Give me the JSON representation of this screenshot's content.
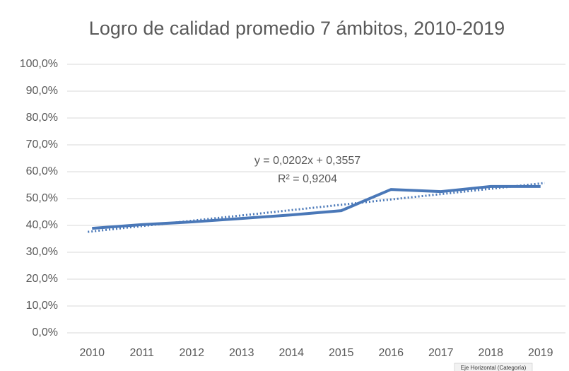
{
  "chart_data": {
    "type": "line",
    "title": "Logro de calidad promedio 7 ámbitos, 2010-2019",
    "categories": [
      "2010",
      "2011",
      "2012",
      "2013",
      "2014",
      "2015",
      "2016",
      "2017",
      "2018",
      "2019"
    ],
    "series": [
      {
        "color": "#4a78b8",
        "values": [
          38.9,
          40.3,
          41.3,
          42.6,
          43.9,
          45.5,
          53.4,
          52.6,
          54.5,
          54.5
        ]
      }
    ],
    "trendline": {
      "color": "#4a78b8",
      "start": 37.6,
      "end": 55.8,
      "equation": "y = 0,0202x + 0,3557",
      "r2": "R² = 0,9204"
    },
    "ylim": [
      0,
      100
    ],
    "yticks": [
      {
        "value": 0,
        "label": "0,0%"
      },
      {
        "value": 10,
        "label": "10,0%"
      },
      {
        "value": 20,
        "label": "20,0%"
      },
      {
        "value": 30,
        "label": "30,0%"
      },
      {
        "value": 40,
        "label": "40,0%"
      },
      {
        "value": 50,
        "label": "50,0%"
      },
      {
        "value": 60,
        "label": "60,0%"
      },
      {
        "value": 70,
        "label": "70,0%"
      },
      {
        "value": 80,
        "label": "80,0%"
      },
      {
        "value": 90,
        "label": "90,0%"
      },
      {
        "value": 100,
        "label": "100,0%"
      }
    ],
    "grid": true,
    "tooltip": "Eje Horizontal (Categoría)"
  }
}
